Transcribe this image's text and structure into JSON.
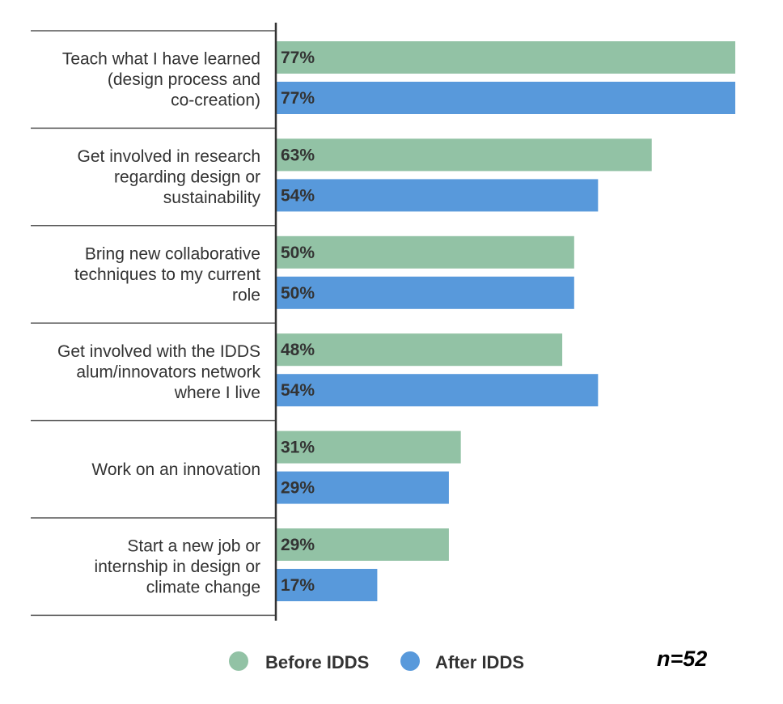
{
  "chart_data": {
    "type": "bar",
    "orientation": "horizontal",
    "categories": [
      [
        "Teach what I have learned",
        "(design process and",
        "co-creation)"
      ],
      [
        "Get involved in research",
        "regarding design or",
        "sustainability"
      ],
      [
        "Bring new collaborative",
        "techniques to my current",
        "role"
      ],
      [
        "Get involved with the IDDS",
        "alum/innovators network",
        "where I live"
      ],
      [
        "Work on an innovation"
      ],
      [
        "Start a new job or",
        "internship in design or",
        "climate change"
      ]
    ],
    "series": [
      {
        "name": "Before IDDS",
        "color": "#92c2a5",
        "values": [
          77,
          63,
          50,
          48,
          31,
          29
        ],
        "labels": [
          "77%",
          "63%",
          "50%",
          "48%",
          "31%",
          "29%"
        ]
      },
      {
        "name": "After IDDS",
        "color": "#5899db",
        "values": [
          77,
          54,
          50,
          54,
          29,
          17
        ],
        "labels": [
          "77%",
          "54%",
          "50%",
          "54%",
          "29%",
          "17%"
        ]
      }
    ],
    "xlim": [
      0,
      77
    ],
    "grid": false,
    "legend": "bottom",
    "annotation": "n=52"
  }
}
